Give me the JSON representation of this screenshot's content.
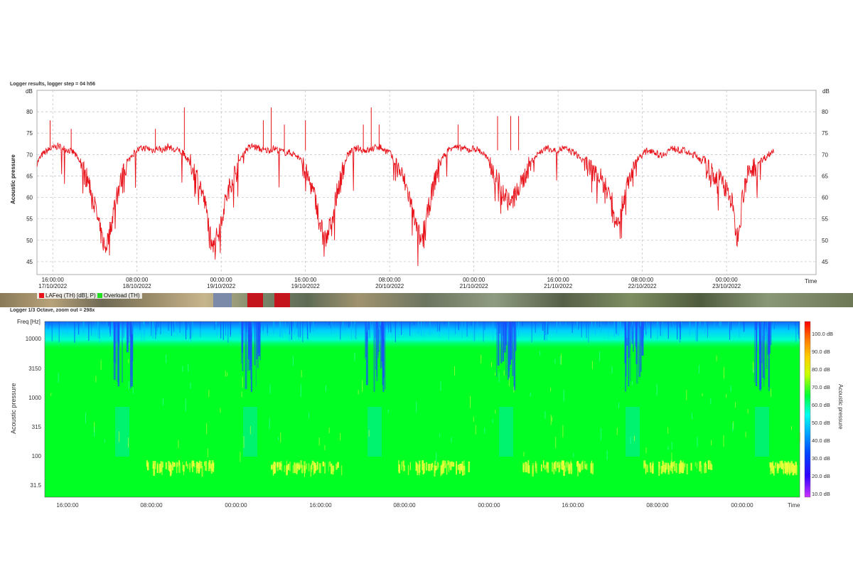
{
  "chart_data": [
    {
      "type": "line",
      "title": "Logger results, logger step = 04 h56",
      "ylabel": "Acoustic pressure",
      "yunit": "dB",
      "xlabel": "Time",
      "ylim": [
        42,
        85
      ],
      "yticks": [
        45,
        50,
        55,
        60,
        65,
        70,
        75,
        80
      ],
      "grid": true,
      "x_tick_labels": [
        {
          "time": "16:00:00",
          "date": "17/10/2022"
        },
        {
          "time": "08:00:00",
          "date": "18/10/2022"
        },
        {
          "time": "00:00:00",
          "date": "19/10/2022"
        },
        {
          "time": "16:00:00",
          "date": "19/10/2022"
        },
        {
          "time": "08:00:00",
          "date": "20/10/2022"
        },
        {
          "time": "00:00:00",
          "date": "21/10/2022"
        },
        {
          "time": "16:00:00",
          "date": "21/10/2022"
        },
        {
          "time": "08:00:00",
          "date": "22/10/2022"
        },
        {
          "time": "00:00:00",
          "date": "23/10/2022"
        }
      ],
      "x_range_hours": [
        0,
        148
      ],
      "x_tick_hours": [
        3,
        19,
        35,
        51,
        67,
        83,
        99,
        115,
        131
      ],
      "series": [
        {
          "name": "LAFeq (TH) [dB], P)",
          "color": "#e8121a",
          "points": [
            [
              0,
              68
            ],
            [
              1,
              70
            ],
            [
              2,
              71
            ],
            [
              3,
              71.5
            ],
            [
              4,
              72
            ],
            [
              5,
              71.5
            ],
            [
              6,
              71
            ],
            [
              7,
              70.5
            ],
            [
              8,
              68.5
            ],
            [
              9,
              66
            ],
            [
              10,
              63
            ],
            [
              11,
              58
            ],
            [
              12,
              52
            ],
            [
              13,
              48
            ],
            [
              14,
              53
            ],
            [
              15,
              60
            ],
            [
              16,
              64
            ],
            [
              17,
              67.5
            ],
            [
              18,
              70
            ],
            [
              19,
              71
            ],
            [
              20,
              71.5
            ],
            [
              21,
              71.5
            ],
            [
              22,
              71
            ],
            [
              23,
              71.5
            ],
            [
              24,
              71
            ],
            [
              25,
              72
            ],
            [
              26,
              71
            ],
            [
              27,
              71
            ],
            [
              28,
              70
            ],
            [
              29,
              68
            ],
            [
              30,
              66
            ],
            [
              31,
              63
            ],
            [
              32,
              58
            ],
            [
              33,
              51
            ],
            [
              34,
              50
            ],
            [
              35,
              55
            ],
            [
              36,
              60
            ],
            [
              37,
              64
            ],
            [
              38,
              67
            ],
            [
              39,
              70
            ],
            [
              40,
              71.5
            ],
            [
              41,
              72
            ],
            [
              42,
              71.5
            ],
            [
              43,
              71
            ],
            [
              44,
              71
            ],
            [
              45,
              71.5
            ],
            [
              46,
              71
            ],
            [
              47,
              70.5
            ],
            [
              48,
              70.5
            ],
            [
              49,
              70
            ],
            [
              50,
              69
            ],
            [
              51,
              66
            ],
            [
              52,
              63
            ],
            [
              53,
              59
            ],
            [
              54,
              53
            ],
            [
              55,
              50
            ],
            [
              56,
              55
            ],
            [
              57,
              61
            ],
            [
              58,
              66
            ],
            [
              59,
              70
            ],
            [
              60,
              71
            ],
            [
              61,
              71.5
            ],
            [
              62,
              71
            ],
            [
              63,
              71
            ],
            [
              64,
              71.5
            ],
            [
              65,
              72
            ],
            [
              66,
              71
            ],
            [
              67,
              70.5
            ],
            [
              68,
              68
            ],
            [
              69,
              66
            ],
            [
              70,
              63
            ],
            [
              71,
              59
            ],
            [
              72,
              53
            ],
            [
              73,
              50
            ],
            [
              74,
              55
            ],
            [
              75,
              61
            ],
            [
              76,
              66
            ],
            [
              77,
              69
            ],
            [
              78,
              71
            ],
            [
              79,
              72
            ],
            [
              80,
              71.5
            ],
            [
              81,
              71.5
            ],
            [
              82,
              71
            ],
            [
              83,
              71.5
            ],
            [
              84,
              71
            ],
            [
              85,
              70
            ],
            [
              86,
              68
            ],
            [
              87,
              65
            ],
            [
              88,
              63
            ],
            [
              89,
              60.5
            ],
            [
              90,
              58
            ],
            [
              91,
              61
            ],
            [
              92,
              63
            ],
            [
              93,
              66
            ],
            [
              94,
              68.5
            ],
            [
              95,
              70
            ],
            [
              96,
              71
            ],
            [
              97,
              71.5
            ],
            [
              98,
              71
            ],
            [
              99,
              71
            ],
            [
              100,
              71.5
            ],
            [
              101,
              71
            ],
            [
              102,
              70.5
            ],
            [
              103,
              69.5
            ],
            [
              104,
              68
            ],
            [
              105,
              67
            ],
            [
              106,
              65.5
            ],
            [
              107,
              64.5
            ],
            [
              108,
              62.5
            ],
            [
              109,
              60
            ],
            [
              110,
              55
            ],
            [
              111,
              57
            ],
            [
              112,
              63
            ],
            [
              113,
              66
            ],
            [
              114,
              69
            ],
            [
              115,
              70
            ],
            [
              116,
              71
            ],
            [
              117,
              71
            ],
            [
              118,
              70
            ],
            [
              119,
              70
            ],
            [
              120,
              71
            ],
            [
              121,
              71.5
            ],
            [
              122,
              71
            ],
            [
              123,
              71
            ],
            [
              124,
              70
            ],
            [
              125,
              70
            ],
            [
              126,
              69
            ],
            [
              127,
              67
            ],
            [
              128,
              66
            ],
            [
              129,
              65
            ],
            [
              130,
              64
            ],
            [
              131,
              62
            ],
            [
              132,
              59
            ],
            [
              133,
              50
            ],
            [
              134,
              60
            ],
            [
              135,
              65
            ],
            [
              136,
              67
            ],
            [
              137,
              68
            ],
            [
              138,
              69
            ],
            [
              139,
              70
            ],
            [
              140,
              71
            ]
          ],
          "spikes": [
            [
              2.5,
              78
            ],
            [
              6.5,
              76
            ],
            [
              22.5,
              76
            ],
            [
              28,
              81
            ],
            [
              43,
              78
            ],
            [
              44.5,
              81
            ],
            [
              47,
              77
            ],
            [
              51,
              78
            ],
            [
              62,
              77
            ],
            [
              63.5,
              81
            ],
            [
              65,
              77
            ],
            [
              80,
              77
            ],
            [
              87.5,
              79
            ],
            [
              90,
              79
            ],
            [
              91.5,
              79
            ]
          ]
        },
        {
          "name": "Overload (TH)",
          "color": "#22dd22",
          "points": []
        }
      ]
    },
    {
      "type": "heatmap",
      "title": "Logger 1/3 Octave, zoom out = 298x",
      "ylabel": "Acoustic pressure",
      "yaxis_title": "Freq [Hz]",
      "y_tick_labels": [
        "10000",
        "3150",
        "1000",
        "315",
        "100",
        "31.5"
      ],
      "xlabel": "Time",
      "x_tick_labels": [
        "16:00:00",
        "08:00:00",
        "00:00:00",
        "16:00:00",
        "08:00:00",
        "00:00:00",
        "16:00:00",
        "08:00:00",
        "00:00:00"
      ],
      "colorbar": {
        "label": "Acoustic pressure",
        "ticks": [
          "100.0 dB",
          "90.0 dB",
          "80.0 dB",
          "70.0 dB",
          "60.0 dB",
          "50.0 dB",
          "40.0 dB",
          "30.0 dB",
          "20.0 dB",
          "10.0 dB"
        ],
        "range_db": [
          10,
          110
        ]
      },
      "dominant_level_db": 68
    }
  ]
}
